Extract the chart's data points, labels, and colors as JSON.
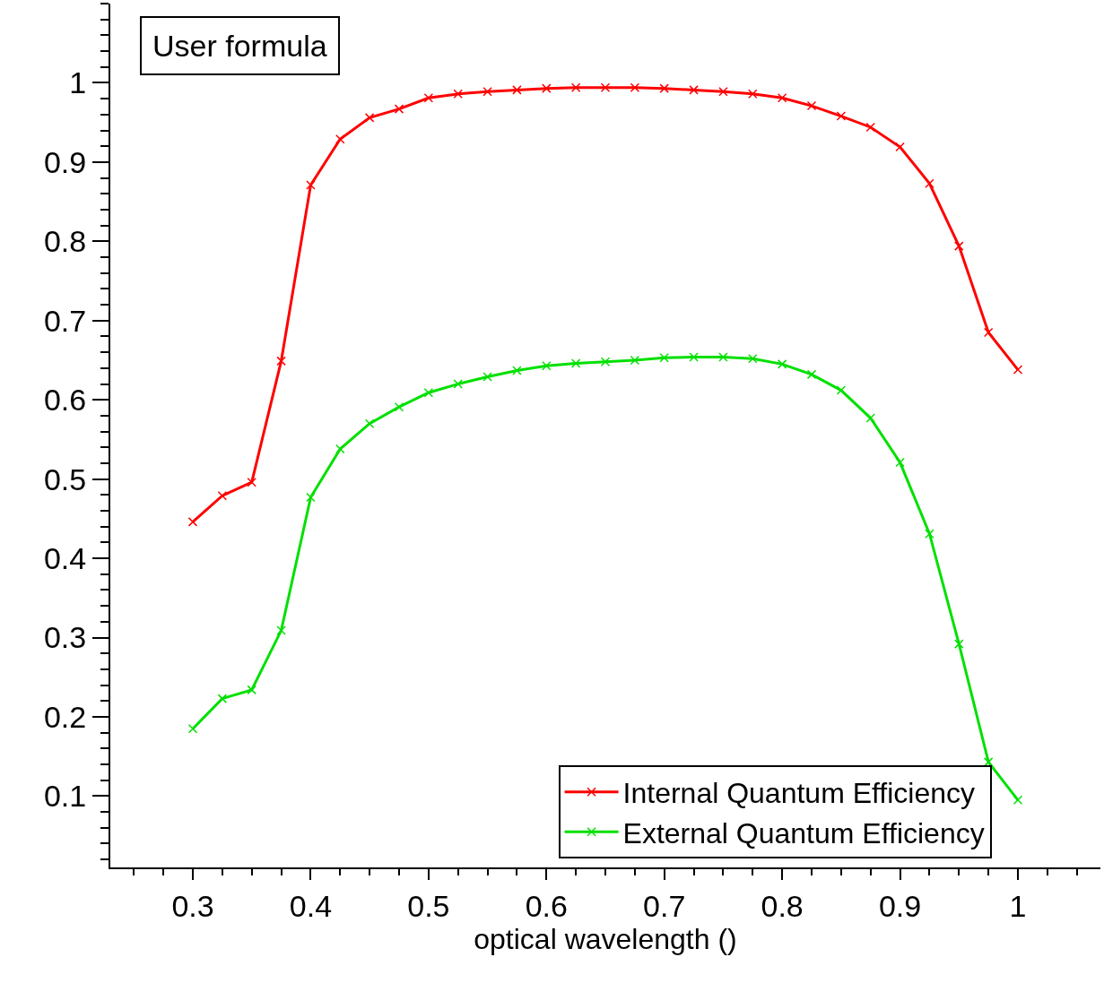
{
  "chart_data": {
    "type": "line",
    "xlabel": "optical wavelength ()",
    "x": [
      0.3,
      0.325,
      0.35,
      0.375,
      0.4,
      0.425,
      0.45,
      0.475,
      0.5,
      0.525,
      0.55,
      0.575,
      0.6,
      0.625,
      0.65,
      0.675,
      0.7,
      0.725,
      0.75,
      0.775,
      0.8,
      0.825,
      0.85,
      0.875,
      0.9,
      0.925,
      0.95,
      0.975,
      1.0
    ],
    "series": [
      {
        "name": "Internal Quantum Efficiency",
        "color": "#ff0000",
        "values": [
          0.446,
          0.479,
          0.496,
          0.649,
          0.871,
          0.929,
          0.956,
          0.967,
          0.981,
          0.986,
          0.989,
          0.991,
          0.993,
          0.994,
          0.994,
          0.994,
          0.993,
          0.991,
          0.989,
          0.986,
          0.981,
          0.971,
          0.958,
          0.944,
          0.919,
          0.873,
          0.794,
          0.685,
          0.638
        ]
      },
      {
        "name": "External Quantum Efficiency",
        "color": "#00e000",
        "values": [
          0.185,
          0.223,
          0.234,
          0.309,
          0.477,
          0.538,
          0.57,
          0.591,
          0.609,
          0.62,
          0.629,
          0.637,
          0.643,
          0.646,
          0.648,
          0.65,
          0.653,
          0.654,
          0.654,
          0.652,
          0.645,
          0.632,
          0.612,
          0.577,
          0.521,
          0.431,
          0.292,
          0.143,
          0.095
        ]
      }
    ],
    "xlim": [
      0.23,
      1.07
    ],
    "xticks": [
      0.3,
      0.4,
      0.5,
      0.6,
      0.7,
      0.8,
      0.9,
      1
    ],
    "ylim": [
      0.01,
      1.1
    ],
    "yticks": [
      0.1,
      0.2,
      0.3,
      0.4,
      0.5,
      0.6,
      0.7,
      0.8,
      0.9,
      1
    ],
    "marker": "cross",
    "line_style": "solid",
    "legend": "bottom right",
    "annotations": [
      "User formula"
    ]
  }
}
